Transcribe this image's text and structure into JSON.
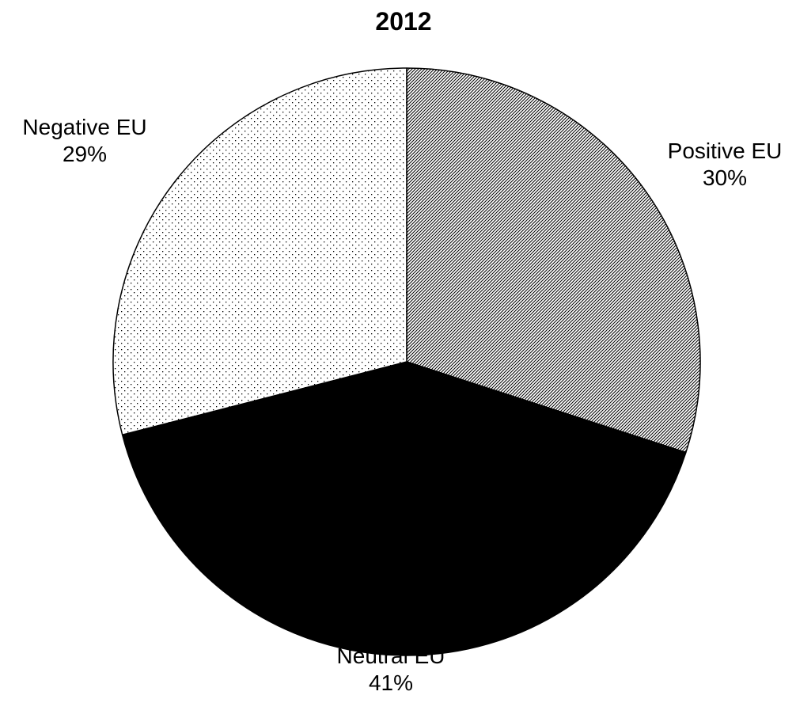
{
  "chart_data": {
    "type": "pie",
    "title": "2012",
    "slices": [
      {
        "label": "Positive EU",
        "pct_label": "30%",
        "value": 30,
        "pattern": "diagonal-hatch"
      },
      {
        "label": "Neutral EU",
        "pct_label": "41%",
        "value": 41,
        "pattern": "solid-black"
      },
      {
        "label": "Negative EU",
        "pct_label": "29%",
        "value": 29,
        "pattern": "dots"
      }
    ],
    "start": "12 o'clock",
    "direction": "clockwise",
    "legend": "none",
    "colors": {
      "outline": "#000000",
      "background": "#ffffff",
      "neutral_fill": "#000000"
    }
  }
}
